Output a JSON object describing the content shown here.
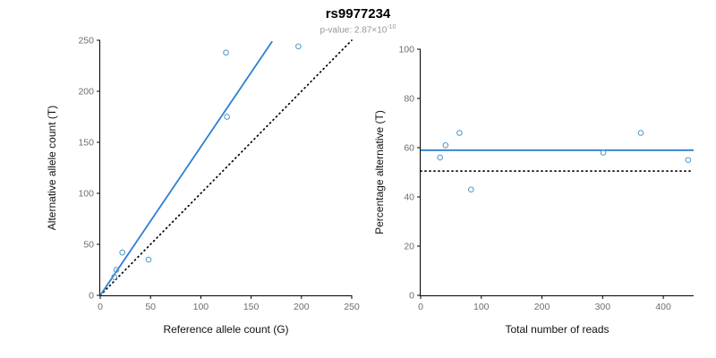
{
  "header": {
    "title": "rs9977234",
    "p_value_label": "p-value: ",
    "p_value_mantissa": "2.87×10",
    "p_value_exponent": "-10"
  },
  "style": {
    "point_color": "#5b9fcf",
    "line_color": "#2f7fd1",
    "reference_color": "#000000",
    "background": "#ffffff"
  },
  "chart_data": [
    {
      "type": "scatter",
      "title": "rs9977234",
      "xlabel": "Reference allele count (G)",
      "ylabel": "Alternative allele count (T)",
      "xlim": [
        0,
        250
      ],
      "ylim": [
        0,
        250
      ],
      "xticks": [
        0,
        50,
        100,
        150,
        200,
        250
      ],
      "yticks": [
        0,
        50,
        100,
        150,
        200,
        250
      ],
      "grid": false,
      "legend": "none",
      "points": [
        [
          14,
          18
        ],
        [
          16,
          25
        ],
        [
          22,
          42
        ],
        [
          48,
          35
        ],
        [
          126,
          175
        ],
        [
          125,
          238
        ],
        [
          197,
          244
        ]
      ],
      "fit_line": {
        "kind": "segment",
        "from": [
          0,
          0
        ],
        "to": [
          171,
          249
        ],
        "style": "solid",
        "description": "regression through origin, slope ~1.45"
      },
      "reference_line": {
        "kind": "segment",
        "from": [
          0,
          0
        ],
        "to": [
          250,
          250
        ],
        "style": "dotted",
        "description": "identity line y=x"
      }
    },
    {
      "type": "scatter",
      "title": "",
      "xlabel": "Total number of reads",
      "ylabel": "Percentage alternative (T)",
      "xlim": [
        0,
        450
      ],
      "ylim": [
        0,
        100
      ],
      "xticks": [
        0,
        100,
        200,
        300,
        400
      ],
      "yticks": [
        0,
        20,
        40,
        60,
        80,
        100
      ],
      "grid": false,
      "legend": "none",
      "points": [
        [
          32,
          56
        ],
        [
          41,
          61
        ],
        [
          64,
          66
        ],
        [
          83,
          43
        ],
        [
          301,
          58
        ],
        [
          363,
          66
        ],
        [
          441,
          55
        ]
      ],
      "fit_line": {
        "kind": "horizontal",
        "y": 59,
        "style": "solid",
        "description": "mean percentage alternative"
      },
      "reference_line": {
        "kind": "horizontal",
        "y": 50.5,
        "style": "dotted",
        "description": "expected 50% line"
      }
    }
  ]
}
